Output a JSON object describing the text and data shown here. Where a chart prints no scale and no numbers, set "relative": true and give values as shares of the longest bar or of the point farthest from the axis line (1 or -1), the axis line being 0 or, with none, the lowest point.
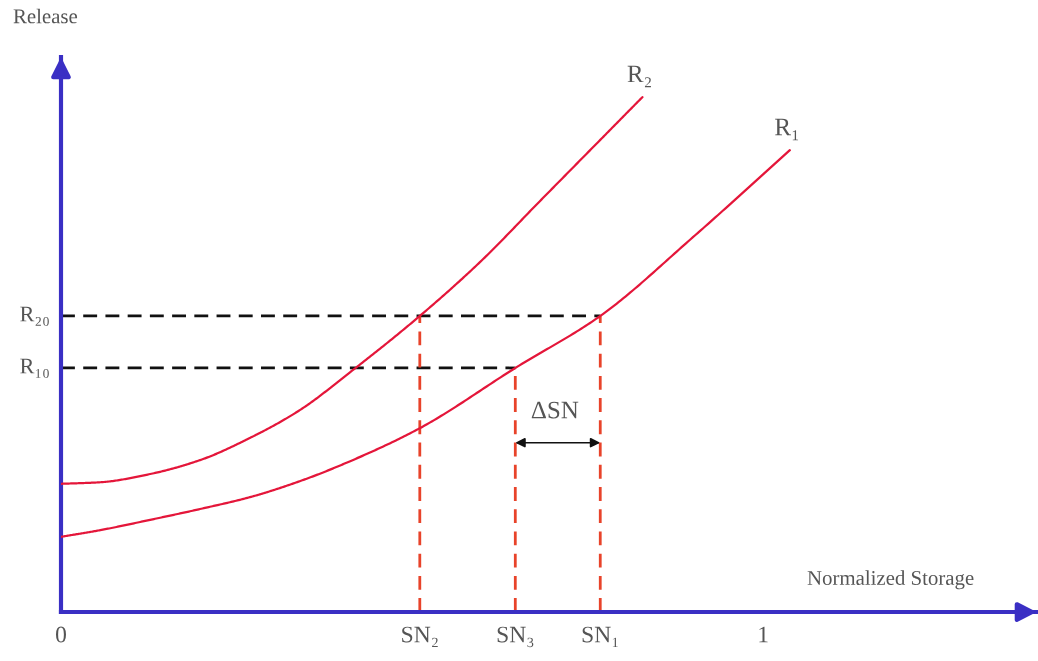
{
  "chart_data": {
    "type": "line",
    "xlabel": "Normalized Storage",
    "ylabel": "Release",
    "relative": true,
    "xlim": [
      0,
      1.39
    ],
    "xticks": [
      0,
      {
        "value": 0.511,
        "label": "SN₂"
      },
      {
        "value": 0.647,
        "label": "SN₃"
      },
      {
        "value": 0.768,
        "label": "SN₁"
      },
      1
    ],
    "series": [
      {
        "name": "R₂",
        "color": "#e4163a",
        "x": [
          0,
          0.056,
          0.127,
          0.198,
          0.269,
          0.34,
          0.412,
          0.511,
          0.597,
          0.682,
          0.768,
          0.828
        ],
        "values": [
          0.249,
          0.252,
          0.268,
          0.295,
          0.338,
          0.392,
          0.466,
          0.575,
          0.68,
          0.798,
          0.917,
          1
        ]
      },
      {
        "name": "R₁",
        "color": "#e4163a",
        "x": [
          0,
          0.056,
          0.127,
          0.198,
          0.269,
          0.34,
          0.412,
          0.511,
          0.647,
          0.768,
          0.9,
          1.038
        ],
        "values": [
          0.146,
          0.159,
          0.179,
          0.2,
          0.223,
          0.254,
          0.293,
          0.357,
          0.474,
          0.575,
          0.728,
          0.897
        ]
      },
      {
        "name": "R₂₀",
        "color": "#111111",
        "line_style": "dashed",
        "x": [
          0,
          0.768
        ],
        "values": [
          0.575,
          0.575
        ]
      },
      {
        "name": "R₁₀",
        "color": "#111111",
        "line_style": "dashed",
        "x": [
          0,
          0.647
        ],
        "values": [
          0.474,
          0.474
        ]
      },
      {
        "color": "#e8432a",
        "line_style": "dashed",
        "x": [
          0.511,
          0.511
        ],
        "values": [
          0,
          0.575
        ]
      },
      {
        "color": "#e8432a",
        "line_style": "dashed",
        "x": [
          0.647,
          0.647
        ],
        "values": [
          0,
          0.474
        ]
      },
      {
        "color": "#e8432a",
        "line_style": "dashed",
        "x": [
          0.768,
          0.768
        ],
        "values": [
          0,
          0.575
        ]
      }
    ],
    "annotations": [
      "ΔSN"
    ]
  }
}
